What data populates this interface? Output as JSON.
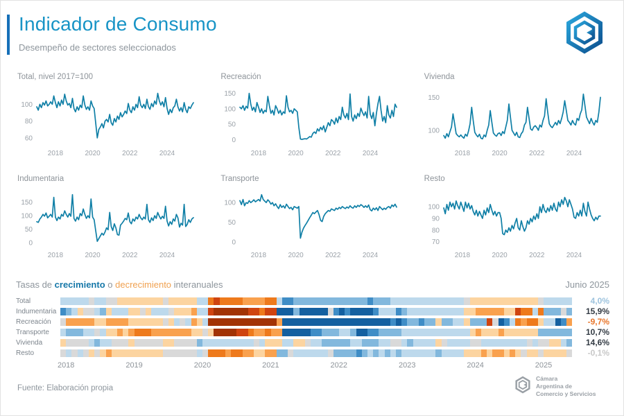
{
  "header": {
    "title": "Indicador de Consumo",
    "subtitle": "Desempeño de sectores seleccionados"
  },
  "colors": {
    "accent": "#1894c6",
    "accent_bar": "#1670b8",
    "line": "#0f7fa6",
    "muted_text": "#8d959c",
    "growth_word": "#1577a8",
    "decline_word": "#f0a150"
  },
  "chart_data": [
    {
      "type": "line",
      "title": "Total, nivel 2017=100",
      "freq": "monthly",
      "x_start": "2017-01",
      "x_end": "2025-06",
      "xticks": [
        2018,
        2020,
        2022,
        2024
      ],
      "yticks": [
        100,
        80,
        60
      ],
      "ylim": [
        55,
        116
      ],
      "values": [
        97,
        93,
        100,
        96,
        102,
        99,
        104,
        98,
        100,
        103,
        100,
        110,
        102,
        96,
        103,
        98,
        105,
        100,
        112,
        104,
        99,
        101,
        96,
        107,
        95,
        91,
        97,
        93,
        99,
        96,
        110,
        99,
        94,
        97,
        93,
        104,
        98,
        95,
        78,
        60,
        70,
        73,
        77,
        72,
        80,
        82,
        79,
        88,
        78,
        75,
        83,
        79,
        86,
        82,
        90,
        85,
        88,
        92,
        89,
        101,
        93,
        90,
        97,
        93,
        100,
        96,
        109,
        99,
        96,
        100,
        95,
        106,
        97,
        94,
        101,
        97,
        104,
        100,
        113,
        104,
        99,
        103,
        97,
        108,
        95,
        88,
        94,
        90,
        96,
        98,
        106,
        97,
        92,
        96,
        91,
        102,
        94,
        90,
        97,
        95,
        99,
        101.9
      ]
    },
    {
      "type": "line",
      "title": "Recreación",
      "freq": "monthly",
      "x_start": "2017-01",
      "x_end": "2025-06",
      "xticks": [
        2018,
        2020,
        2022,
        2024
      ],
      "yticks": [
        150,
        100,
        50,
        0
      ],
      "ylim": [
        -8,
        158
      ],
      "values": [
        105,
        100,
        110,
        95,
        108,
        102,
        150,
        115,
        95,
        105,
        90,
        120,
        105,
        88,
        100,
        85,
        95,
        90,
        140,
        110,
        85,
        95,
        80,
        110,
        100,
        85,
        95,
        80,
        90,
        85,
        142,
        105,
        90,
        95,
        85,
        100,
        95,
        90,
        40,
        2,
        1,
        2,
        3,
        2,
        6,
        10,
        8,
        20,
        25,
        20,
        35,
        28,
        40,
        32,
        45,
        25,
        40,
        55,
        45,
        65,
        60,
        50,
        70,
        55,
        75,
        65,
        105,
        80,
        70,
        85,
        65,
        148,
        75,
        60,
        80,
        68,
        85,
        75,
        102,
        88,
        78,
        90,
        70,
        140,
        82,
        68,
        88,
        45,
        85,
        116,
        140,
        95,
        60,
        75,
        55,
        110,
        80,
        70,
        95,
        75,
        115,
        104.7
      ]
    },
    {
      "type": "line",
      "title": "Vivienda",
      "freq": "monthly",
      "x_start": "2017-01",
      "x_end": "2025-06",
      "xticks": [
        2018,
        2020,
        2022,
        2024
      ],
      "yticks": [
        150,
        100
      ],
      "ylim": [
        82,
        160
      ],
      "values": [
        92,
        88,
        95,
        90,
        98,
        105,
        125,
        110,
        95,
        92,
        90,
        93,
        90,
        88,
        94,
        91,
        99,
        110,
        135,
        115,
        97,
        93,
        90,
        94,
        88,
        87,
        93,
        90,
        100,
        108,
        130,
        112,
        96,
        93,
        91,
        95,
        96,
        92,
        98,
        95,
        105,
        115,
        140,
        120,
        100,
        96,
        92,
        97,
        90,
        89,
        95,
        98,
        108,
        112,
        135,
        118,
        102,
        100,
        105,
        107,
        104,
        100,
        108,
        105,
        115,
        122,
        148,
        128,
        110,
        106,
        104,
        108,
        112,
        108,
        115,
        110,
        118,
        128,
        145,
        130,
        115,
        112,
        108,
        115,
        110,
        108,
        118,
        115,
        125,
        131,
        155,
        138,
        120,
        115,
        110,
        118,
        112,
        108,
        115,
        112,
        128,
        150.1
      ]
    },
    {
      "type": "line",
      "title": "Indumentaria",
      "freq": "monthly",
      "x_start": "2017-01",
      "x_end": "2025-06",
      "xticks": [
        2018,
        2020,
        2022,
        2024
      ],
      "yticks": [
        150,
        100,
        50,
        0
      ],
      "ylim": [
        -5,
        185
      ],
      "values": [
        78,
        75,
        88,
        95,
        105,
        98,
        110,
        92,
        98,
        105,
        95,
        168,
        95,
        82,
        95,
        88,
        105,
        98,
        118,
        105,
        95,
        108,
        98,
        178,
        90,
        80,
        95,
        85,
        108,
        100,
        125,
        105,
        90,
        100,
        92,
        162,
        95,
        85,
        45,
        5,
        15,
        25,
        35,
        28,
        40,
        55,
        48,
        112,
        60,
        45,
        70,
        55,
        30,
        28,
        65,
        72,
        80,
        90,
        85,
        110,
        78,
        70,
        88,
        80,
        95,
        88,
        105,
        92,
        85,
        95,
        88,
        142,
        85,
        75,
        92,
        82,
        100,
        90,
        112,
        98,
        88,
        98,
        90,
        135,
        80,
        62,
        78,
        68,
        88,
        80,
        105,
        92,
        58,
        72,
        65,
        142,
        60,
        68,
        85,
        75,
        88,
        92.7
      ]
    },
    {
      "type": "line",
      "title": "Transporte",
      "freq": "monthly",
      "x_start": "2017-01",
      "x_end": "2025-06",
      "xticks": [
        2018,
        2020,
        2022,
        2024
      ],
      "yticks": [
        100,
        50,
        0
      ],
      "ylim": [
        -5,
        125
      ],
      "values": [
        105,
        95,
        108,
        92,
        100,
        98,
        105,
        100,
        103,
        107,
        102,
        105,
        108,
        104,
        120,
        108,
        104,
        100,
        107,
        103,
        96,
        100,
        92,
        97,
        90,
        85,
        95,
        88,
        92,
        86,
        96,
        90,
        85,
        88,
        82,
        90,
        88,
        86,
        90,
        10,
        25,
        35,
        42,
        48,
        55,
        62,
        68,
        75,
        72,
        76,
        80,
        70,
        55,
        52,
        65,
        72,
        76,
        80,
        78,
        84,
        82,
        80,
        86,
        83,
        88,
        85,
        90,
        87,
        85,
        89,
        86,
        92,
        88,
        86,
        92,
        88,
        93,
        90,
        95,
        92,
        88,
        92,
        88,
        94,
        82,
        79,
        86,
        82,
        87,
        80,
        90,
        86,
        82,
        86,
        83,
        88,
        90,
        86,
        94,
        90,
        96,
        88.6
      ]
    },
    {
      "type": "line",
      "title": "Resto",
      "freq": "monthly",
      "x_start": "2017-01",
      "x_end": "2025-06",
      "xticks": [
        2018,
        2020,
        2022,
        2024
      ],
      "yticks": [
        100,
        90,
        80,
        70
      ],
      "ylim": [
        68,
        112
      ],
      "values": [
        99,
        94,
        102,
        97,
        104,
        100,
        103,
        98,
        105,
        101,
        98,
        104,
        100,
        96,
        104,
        99,
        103,
        98,
        101,
        96,
        93,
        97,
        92,
        96,
        93,
        90,
        97,
        93,
        99,
        95,
        102,
        97,
        93,
        96,
        92,
        95,
        95,
        90,
        77,
        76,
        80,
        78,
        82,
        79,
        84,
        81,
        86,
        90,
        82,
        80,
        88,
        83,
        79,
        82,
        88,
        85,
        90,
        87,
        92,
        89,
        94,
        90,
        100,
        95,
        102,
        97,
        95,
        99,
        96,
        101,
        97,
        103,
        98,
        96,
        104,
        100,
        106,
        102,
        108,
        105,
        100,
        106,
        102,
        98,
        91,
        90,
        95,
        92,
        97,
        92.1,
        103,
        96,
        92,
        104,
        98,
        93,
        90,
        88,
        91,
        89,
        92,
        92
      ]
    }
  ],
  "heatmap": {
    "type": "heatmap",
    "title_parts": [
      "Tasas de ",
      "crecimiento",
      " o ",
      "decrecimiento",
      " interanuales"
    ],
    "period_label": "Junio 2025",
    "note": "cells = year-over-year % change of each monthly series, Jan 2018 - Jun 2025",
    "years": [
      "2018",
      "2019",
      "2020",
      "2021",
      "2022",
      "2023",
      "2024",
      "2025"
    ],
    "scale": [
      [
        45,
        "#1460a0"
      ],
      [
        20,
        "#3f8dc6"
      ],
      [
        8,
        "#82b8dd"
      ],
      [
        2,
        "#bdd9ec"
      ],
      [
        -2,
        "#d9d9d9"
      ],
      [
        -8,
        "#fcd4a0"
      ],
      [
        -18,
        "#f9a14e"
      ],
      [
        -32,
        "#ee7a1c"
      ],
      [
        -55,
        "#cf4410"
      ],
      [
        -10000,
        "#a23305"
      ]
    ],
    "rows": [
      {
        "label": "Total",
        "chart": 0,
        "value": "4,0%",
        "value_color": "#9dc3de"
      },
      {
        "label": "Indumentaria",
        "chart": 3,
        "value": "15,9%",
        "value_color": "#333b44"
      },
      {
        "label": "Recreación",
        "chart": 1,
        "value": "-9,7%",
        "value_color": "#e8762b"
      },
      {
        "label": "Transporte",
        "chart": 4,
        "value": "10,7%",
        "value_color": "#333b44"
      },
      {
        "label": "Vivienda",
        "chart": 2,
        "value": "14,6%",
        "value_color": "#333b44"
      },
      {
        "label": "Resto",
        "chart": 5,
        "value": "-0,1%",
        "value_color": "#c8c8c8"
      }
    ]
  },
  "footer": {
    "source": "Fuente: Elaboración propia",
    "org_name_lines": [
      "Cámara",
      "Argentina de",
      "Comercio y Servicios"
    ]
  }
}
